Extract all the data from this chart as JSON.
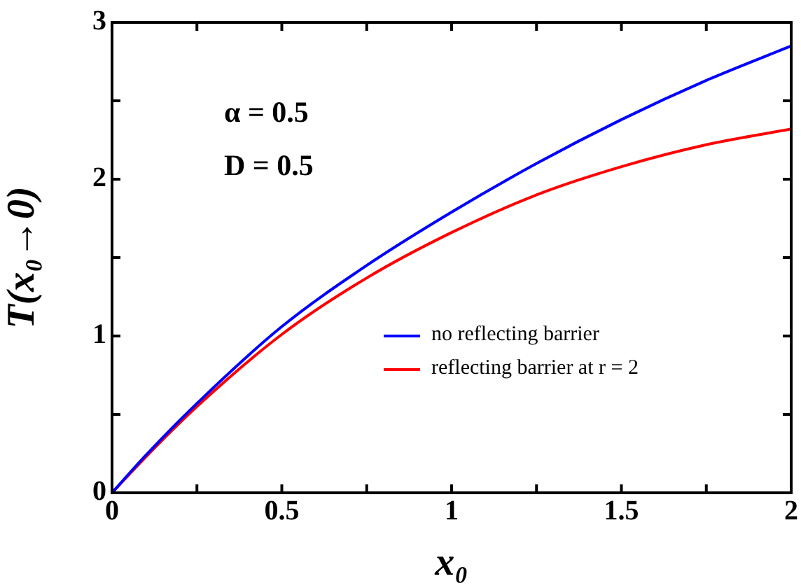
{
  "chart_data": {
    "type": "line",
    "xlabel": "x₀",
    "ylabel": "T(x₀→0)",
    "x": [
      0,
      0.1,
      0.25,
      0.5,
      0.75,
      1,
      1.25,
      1.5,
      1.75,
      2
    ],
    "series": [
      {
        "name": "no reflecting barrier",
        "color": "#0000ff",
        "values": [
          0,
          0.24,
          0.57,
          1.06,
          1.45,
          1.79,
          2.1,
          2.38,
          2.63,
          2.85
        ]
      },
      {
        "name": "reflecting barrier at r = 2",
        "color": "#ff0000",
        "values": [
          0,
          0.23,
          0.55,
          1.01,
          1.37,
          1.66,
          1.9,
          2.08,
          2.22,
          2.32
        ]
      }
    ],
    "xlim": [
      0,
      2
    ],
    "ylim": [
      0,
      3
    ],
    "xticks": [
      0,
      {
        "value": 0.25,
        "label": null
      },
      0.5,
      {
        "value": 0.75,
        "label": null
      },
      1,
      {
        "value": 1.25,
        "label": null
      },
      1.5,
      {
        "value": 1.75,
        "label": null
      },
      2
    ],
    "yticks": [
      0,
      {
        "value": 0.5,
        "label": null
      },
      1,
      {
        "value": 1.5,
        "label": null
      },
      2,
      {
        "value": 2.5,
        "label": null
      },
      3
    ],
    "annotations": [
      "α = 0.5",
      "D = 0.5"
    ],
    "legend": "bottom right",
    "grid": false,
    "marker": "none",
    "line_style": "solid"
  }
}
